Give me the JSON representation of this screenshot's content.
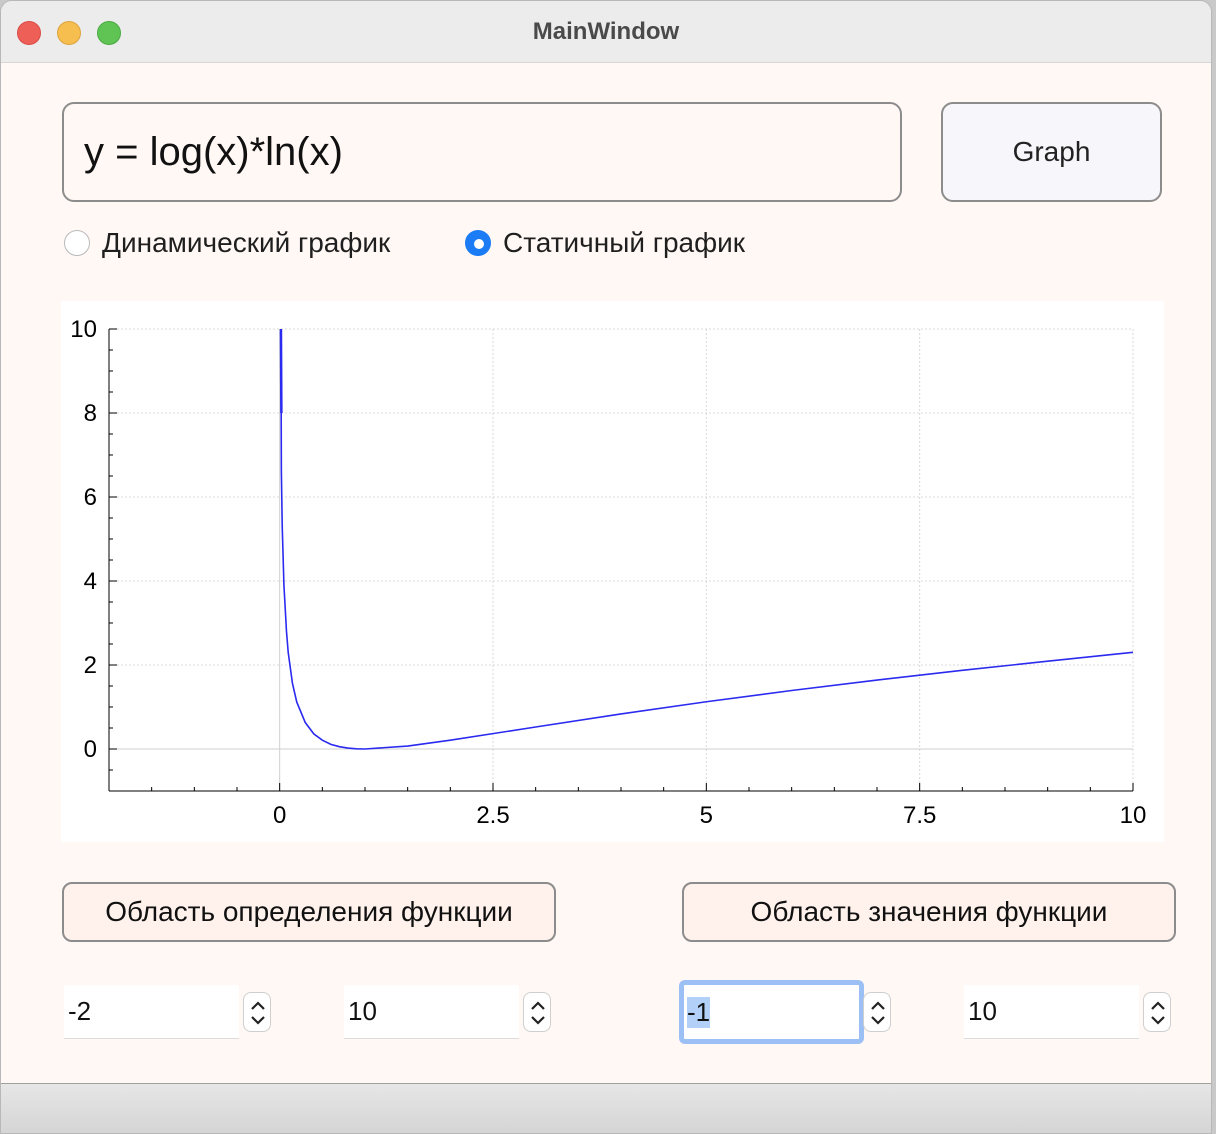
{
  "window": {
    "title": "MainWindow"
  },
  "expression": {
    "value": "y = log(x)*ln(x)"
  },
  "graph_button": {
    "label": "Graph"
  },
  "mode": {
    "dynamic_label": "Динамический график",
    "static_label": "Статичный график",
    "selected": "static"
  },
  "chart_data": {
    "type": "line",
    "title": "",
    "xlabel": "",
    "ylabel": "",
    "xlim": [
      -2,
      10
    ],
    "ylim": [
      -1,
      10
    ],
    "x_ticks": [
      "0",
      "2.5",
      "5",
      "7.5",
      "10"
    ],
    "y_ticks": [
      "0",
      "2",
      "4",
      "6",
      "8",
      "10"
    ],
    "grid": true,
    "color": "#2a2af0",
    "series": [
      {
        "x": [
          0.02,
          0.03,
          0.05,
          0.08,
          0.1,
          0.15,
          0.2,
          0.3,
          0.4,
          0.5,
          0.6,
          0.7,
          0.8,
          0.9,
          1.0,
          1.5,
          2.0,
          3.0,
          4.0,
          5.0,
          6.0,
          7.0,
          8.0,
          9.0,
          10.0
        ],
        "y": [
          6.6,
          5.3,
          3.9,
          2.8,
          2.3,
          1.56,
          1.12,
          0.63,
          0.36,
          0.21,
          0.11,
          0.055,
          0.022,
          0.005,
          0.0,
          0.071,
          0.209,
          0.524,
          0.835,
          1.125,
          1.393,
          1.641,
          1.873,
          2.09,
          2.303
        ]
      }
    ]
  },
  "domain_button": {
    "label": "Область определения функции"
  },
  "range_button": {
    "label": "Область значения функции"
  },
  "spinboxes": {
    "x_min": "-2",
    "x_max": "10",
    "y_min": "-1",
    "y_max": "10"
  }
}
